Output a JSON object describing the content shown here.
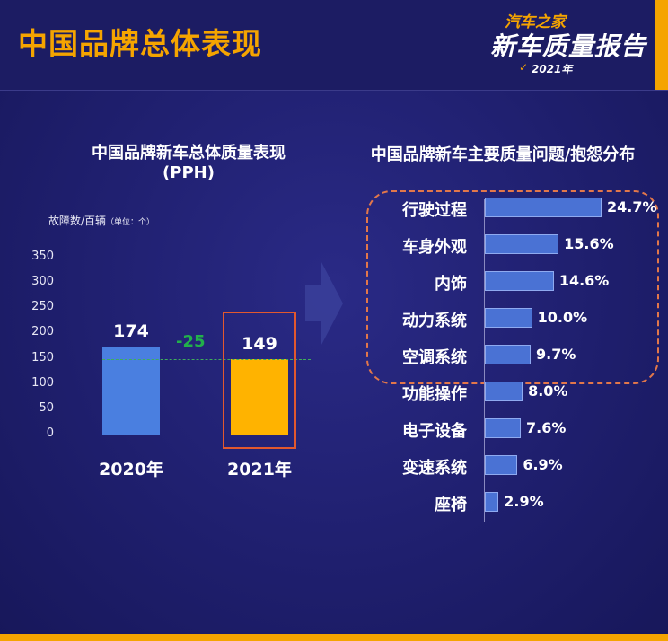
{
  "header": {
    "title": "中国品牌总体表现",
    "logo_top": "汽车之家",
    "logo_main": "新车质量报告",
    "logo_year": "2021年"
  },
  "colors": {
    "accent": "#f5a400",
    "bar_2020": "#4a7fe0",
    "bar_2021": "#ffb300",
    "diff": "#22b04b",
    "highlight": "#e2582e",
    "hbar": "#4a72d4"
  },
  "left_chart": {
    "title_line1": "中国品牌新车总体质量表现",
    "title_line2": "(PPH)",
    "axis_caption": "故障数/百辆",
    "axis_caption_unit": "（单位：个）",
    "diff_label": "-25"
  },
  "right_chart": {
    "title": "中国品牌新车主要质量问题/抱怨分布"
  },
  "chart_data": [
    {
      "type": "bar",
      "title": "中国品牌新车总体质量表现 (PPH)",
      "ylabel": "故障数/百辆（单位：个）",
      "categories": [
        "2020年",
        "2021年"
      ],
      "values": [
        174,
        149
      ],
      "value_labels": [
        "174",
        "149"
      ],
      "ylim": [
        0,
        350
      ],
      "yticks": [
        0,
        50,
        100,
        150,
        200,
        250,
        300,
        350
      ],
      "annotation": "-25",
      "grid": false
    },
    {
      "type": "bar",
      "orientation": "horizontal",
      "title": "中国品牌新车主要质量问题/抱怨分布",
      "categories": [
        "行驶过程",
        "车身外观",
        "内饰",
        "动力系统",
        "空调系统",
        "功能操作",
        "电子设备",
        "变速系统",
        "座椅"
      ],
      "values": [
        24.7,
        15.6,
        14.6,
        10.0,
        9.7,
        8.0,
        7.6,
        6.9,
        2.9
      ],
      "value_labels": [
        "24.7%",
        "15.6%",
        "14.6%",
        "10.0%",
        "9.7%",
        "8.0%",
        "7.6%",
        "6.9%",
        "2.9%"
      ],
      "highlighted_top": 5,
      "grid": false
    }
  ]
}
